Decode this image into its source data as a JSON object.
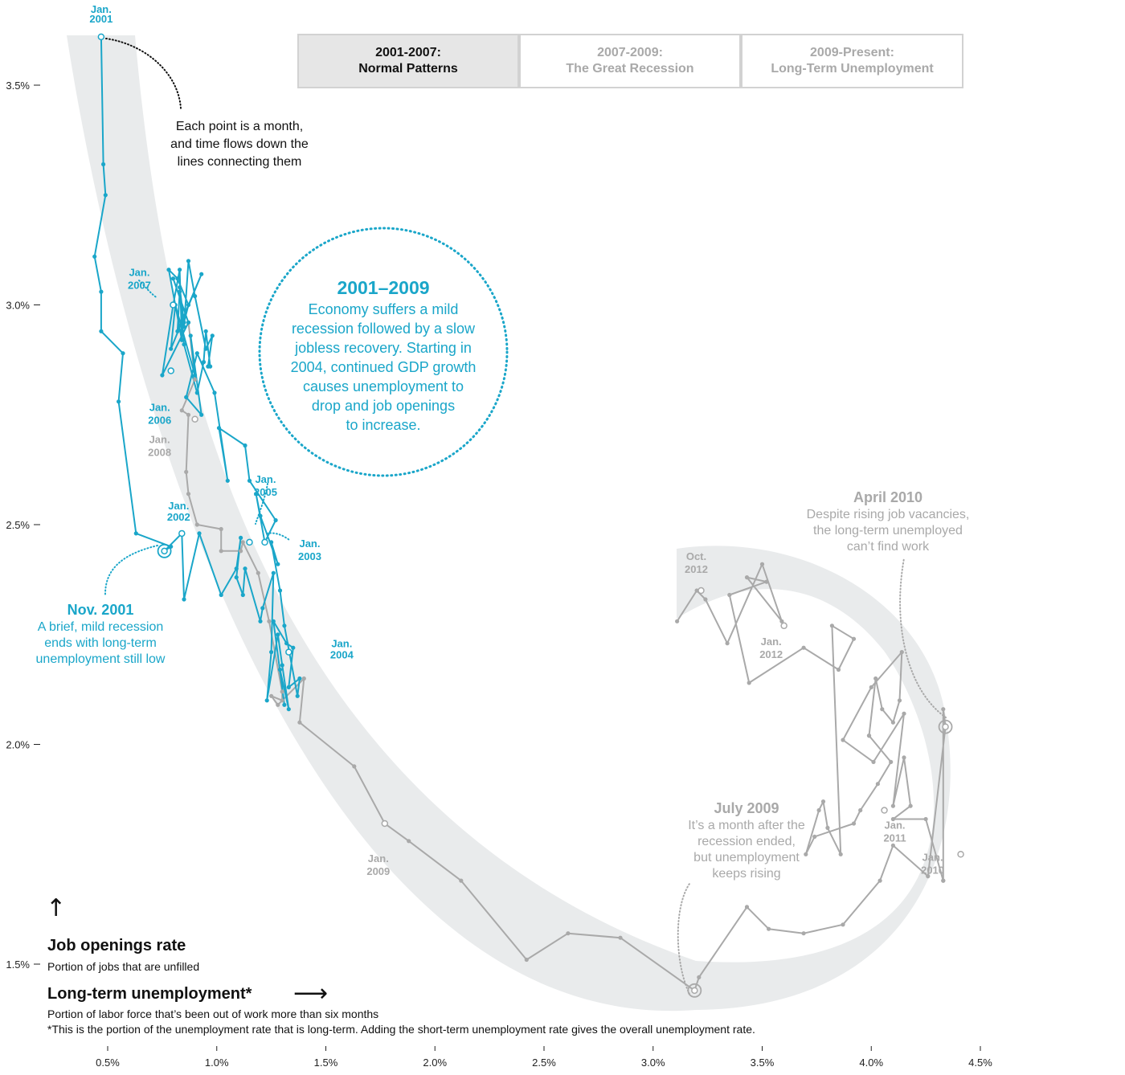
{
  "tabs": [
    {
      "line1": "2001-2007:",
      "line2": "Normal Patterns",
      "active": true
    },
    {
      "line1": "2007-2009:",
      "line2": "The Great Recession",
      "active": false
    },
    {
      "line1": "2009-Present:",
      "line2": "Long-Term Unemployment",
      "active": false
    }
  ],
  "axes": {
    "y_title": "Job openings rate",
    "y_subtitle": "Portion of jobs that are unfilled",
    "x_title": "Long-term unemployment*",
    "x_subtitle": "Portion of labor force that’s been out of work more than six months",
    "footnote": "*This is the portion of the unemployment rate that is long-term. Adding the short-term unemployment rate gives the overall unemployment rate.",
    "y_arrow": "↑",
    "x_arrow": "⟶"
  },
  "colors": {
    "highlight": "#1aa6c9",
    "muted": "#a9a9a9",
    "band": "#e9ebec",
    "axis_text": "#222222"
  },
  "annotations": {
    "each_point": [
      "Each point is a month,",
      "and time flows down the",
      "lines connecting them"
    ],
    "circle_title": "2001–2009",
    "circle_body": [
      "Economy suffers a mild",
      "recession followed by a slow",
      "jobless recovery. Starting in",
      "2004, continued GDP growth",
      "causes unemployment to",
      "drop and job openings",
      "to increase."
    ],
    "nov2001_title": "Nov. 2001",
    "nov2001_body": [
      "A brief, mild recession",
      "ends with long-term",
      "unemployment still low"
    ],
    "july2009_title": "July 2009",
    "july2009_body": [
      "It’s a month after the",
      "recession ended,",
      "but unemployment",
      "keeps rising"
    ],
    "april2010_title": "April 2010",
    "april2010_body": [
      "Despite rising job vacancies,",
      "the long-term unemployed",
      "can’t find work"
    ]
  },
  "chart_data": {
    "type": "scatter",
    "connected": true,
    "x_label": "Long-term unemployment*",
    "y_label": "Job openings rate",
    "x_unit": "%",
    "y_unit": "%",
    "xlim": [
      0.28,
      4.58
    ],
    "ylim": [
      1.41,
      3.63
    ],
    "x_ticks": [
      0.5,
      1.0,
      1.5,
      2.0,
      2.5,
      3.0,
      3.5,
      4.0,
      4.5
    ],
    "x_tick_labels": [
      "0.5%",
      "1.0%",
      "1.5%",
      "2.0%",
      "2.5%",
      "3.0%",
      "3.5%",
      "4.0%",
      "4.5%"
    ],
    "y_ticks": [
      1.5,
      2.0,
      2.5,
      3.0,
      3.5
    ],
    "y_tick_labels": [
      "1.5%",
      "2.0%",
      "2.5%",
      "3.0%",
      "3.5%"
    ],
    "series": [
      {
        "period": "2001-2007",
        "highlighted": true,
        "points": [
          [
            0.47,
            3.61
          ],
          [
            0.48,
            3.32
          ],
          [
            0.49,
            3.25
          ],
          [
            0.44,
            3.11
          ],
          [
            0.47,
            3.03
          ],
          [
            0.47,
            2.94
          ],
          [
            0.57,
            2.89
          ],
          [
            0.55,
            2.78
          ],
          [
            0.63,
            2.48
          ],
          [
            0.79,
            2.45
          ],
          [
            0.76,
            2.44
          ],
          [
            0.84,
            2.48
          ],
          [
            0.85,
            2.33
          ],
          [
            0.92,
            2.48
          ],
          [
            1.02,
            2.34
          ],
          [
            1.09,
            2.4
          ],
          [
            1.11,
            2.47
          ],
          [
            1.09,
            2.38
          ],
          [
            1.12,
            2.34
          ],
          [
            1.13,
            2.4
          ],
          [
            1.2,
            2.28
          ],
          [
            1.21,
            2.31
          ],
          [
            1.26,
            2.39
          ],
          [
            1.25,
            2.21
          ],
          [
            1.23,
            2.1
          ],
          [
            1.28,
            2.25
          ],
          [
            1.3,
            2.18
          ],
          [
            1.33,
            2.08
          ],
          [
            1.29,
            2.17
          ],
          [
            1.31,
            2.09
          ],
          [
            1.26,
            2.28
          ],
          [
            1.32,
            2.23
          ],
          [
            1.35,
            2.22
          ],
          [
            1.33,
            2.13
          ],
          [
            1.38,
            2.15
          ],
          [
            1.37,
            2.11
          ],
          [
            1.31,
            2.27
          ],
          [
            1.29,
            2.35
          ],
          [
            1.25,
            2.46
          ],
          [
            1.28,
            2.41
          ],
          [
            1.2,
            2.52
          ],
          [
            1.18,
            2.57
          ],
          [
            1.22,
            2.46
          ],
          [
            1.27,
            2.51
          ],
          [
            1.15,
            2.6
          ],
          [
            1.13,
            2.68
          ],
          [
            1.01,
            2.72
          ],
          [
            1.05,
            2.6
          ],
          [
            0.99,
            2.8
          ],
          [
            0.91,
            2.89
          ],
          [
            0.86,
            2.79
          ],
          [
            0.93,
            2.75
          ],
          [
            0.88,
            2.93
          ],
          [
            0.9,
            2.84
          ],
          [
            0.81,
            3.0
          ],
          [
            0.79,
            2.9
          ],
          [
            0.93,
            3.07
          ],
          [
            0.82,
            2.94
          ],
          [
            0.83,
            3.03
          ],
          [
            0.85,
            2.95
          ],
          [
            0.87,
            3.1
          ],
          [
            0.9,
            3.02
          ],
          [
            0.95,
            2.9
          ],
          [
            0.98,
            2.93
          ],
          [
            0.96,
            2.86
          ],
          [
            0.97,
            2.86
          ],
          [
            0.95,
            2.94
          ],
          [
            0.94,
            2.87
          ],
          [
            0.91,
            2.8
          ],
          [
            0.85,
            2.91
          ],
          [
            0.83,
            3.04
          ],
          [
            0.85,
            2.96
          ],
          [
            0.87,
            3.0
          ],
          [
            0.82,
            3.06
          ],
          [
            0.78,
            3.08
          ],
          [
            0.84,
            2.92
          ],
          [
            0.83,
            3.08
          ],
          [
            0.8,
            3.0
          ],
          [
            0.75,
            2.84
          ],
          [
            0.87,
            2.96
          ],
          [
            0.8,
            3.06
          ]
        ]
      },
      {
        "period": "2007-2009",
        "highlighted": false,
        "points": [
          [
            0.87,
            2.96
          ],
          [
            0.9,
            2.83
          ],
          [
            0.84,
            2.76
          ],
          [
            0.87,
            2.75
          ],
          [
            0.86,
            2.62
          ],
          [
            0.87,
            2.57
          ],
          [
            0.91,
            2.5
          ],
          [
            1.02,
            2.49
          ],
          [
            1.02,
            2.44
          ],
          [
            1.11,
            2.44
          ],
          [
            1.12,
            2.46
          ],
          [
            1.19,
            2.39
          ],
          [
            1.24,
            2.28
          ],
          [
            1.3,
            2.12
          ],
          [
            1.3,
            2.1
          ],
          [
            1.25,
            2.11
          ],
          [
            1.28,
            2.09
          ],
          [
            1.4,
            2.15
          ],
          [
            1.38,
            2.05
          ],
          [
            1.63,
            1.95
          ],
          [
            1.77,
            1.82
          ],
          [
            1.88,
            1.78
          ],
          [
            2.12,
            1.69
          ],
          [
            2.42,
            1.51
          ],
          [
            2.61,
            1.57
          ],
          [
            2.85,
            1.56
          ],
          [
            3.19,
            1.44
          ],
          [
            3.21,
            1.47
          ],
          [
            3.43,
            1.63
          ],
          [
            3.53,
            1.58
          ],
          [
            3.69,
            1.57
          ],
          [
            3.87,
            1.59
          ],
          [
            4.04,
            1.69
          ],
          [
            4.1,
            1.77
          ],
          [
            4.26,
            1.7
          ],
          [
            4.34,
            2.04
          ],
          [
            4.33,
            2.08
          ],
          [
            4.33,
            1.69
          ]
        ]
      },
      {
        "period": "2009-Present",
        "highlighted": false,
        "points": [
          [
            4.33,
            1.69
          ],
          [
            4.25,
            1.83
          ],
          [
            4.1,
            1.83
          ],
          [
            4.18,
            1.86
          ],
          [
            4.15,
            1.97
          ],
          [
            4.1,
            1.86
          ],
          [
            4.15,
            2.07
          ],
          [
            4.01,
            1.96
          ],
          [
            3.87,
            2.01
          ],
          [
            4.0,
            2.13
          ],
          [
            4.14,
            2.21
          ],
          [
            4.13,
            2.1
          ],
          [
            4.1,
            2.05
          ],
          [
            4.05,
            2.08
          ],
          [
            4.02,
            2.15
          ],
          [
            3.99,
            2.02
          ],
          [
            3.99,
            2.02
          ],
          [
            4.09,
            1.96
          ],
          [
            4.03,
            1.91
          ],
          [
            3.95,
            1.85
          ],
          [
            3.92,
            1.82
          ],
          [
            3.74,
            1.79
          ],
          [
            3.7,
            1.75
          ],
          [
            3.76,
            1.85
          ],
          [
            3.78,
            1.87
          ],
          [
            3.8,
            1.81
          ],
          [
            3.86,
            1.75
          ],
          [
            3.82,
            2.27
          ],
          [
            3.92,
            2.24
          ],
          [
            3.85,
            2.17
          ],
          [
            3.69,
            2.22
          ],
          [
            3.44,
            2.14
          ],
          [
            3.35,
            2.34
          ],
          [
            3.52,
            2.37
          ],
          [
            3.43,
            2.38
          ],
          [
            3.59,
            2.28
          ],
          [
            3.5,
            2.41
          ],
          [
            3.34,
            2.23
          ],
          [
            3.24,
            2.33
          ],
          [
            3.2,
            2.35
          ],
          [
            3.11,
            2.28
          ]
        ]
      }
    ],
    "point_labels": [
      {
        "text": [
          "Jan.",
          "2001"
        ],
        "x": 0.47,
        "y": 3.61,
        "highlighted": true
      },
      {
        "text": [
          "Jan.",
          "2002"
        ],
        "x": 0.84,
        "y": 2.48,
        "highlighted": true
      },
      {
        "text": [
          "Jan.",
          "2003"
        ],
        "x": 1.22,
        "y": 2.46,
        "highlighted": true
      },
      {
        "text": [
          "Jan.",
          "2004"
        ],
        "x": 1.33,
        "y": 2.21,
        "highlighted": true
      },
      {
        "text": [
          "Jan.",
          "2005"
        ],
        "x": 1.15,
        "y": 2.46,
        "highlighted": true
      },
      {
        "text": [
          "Jan.",
          "2006"
        ],
        "x": 0.79,
        "y": 2.85,
        "highlighted": true
      },
      {
        "text": [
          "Jan.",
          "2007"
        ],
        "x": 0.8,
        "y": 3.0,
        "highlighted": true
      },
      {
        "text": [
          "Jan.",
          "2008"
        ],
        "x": 0.9,
        "y": 2.74,
        "highlighted": false
      },
      {
        "text": [
          "Jan.",
          "2009"
        ],
        "x": 1.77,
        "y": 1.82,
        "highlighted": false
      },
      {
        "text": [
          "Jan.",
          "2010"
        ],
        "x": 4.41,
        "y": 1.75,
        "highlighted": false
      },
      {
        "text": [
          "Jan.",
          "2011"
        ],
        "x": 4.06,
        "y": 1.85,
        "highlighted": false
      },
      {
        "text": [
          "Jan.",
          "2012"
        ],
        "x": 3.6,
        "y": 2.27,
        "highlighted": false
      },
      {
        "text": [
          "Oct.",
          "2012"
        ],
        "x": 3.22,
        "y": 2.35,
        "highlighted": false
      }
    ],
    "highlighted_months": [
      "Nov. 2001",
      "July 2009",
      "April 2010"
    ]
  }
}
